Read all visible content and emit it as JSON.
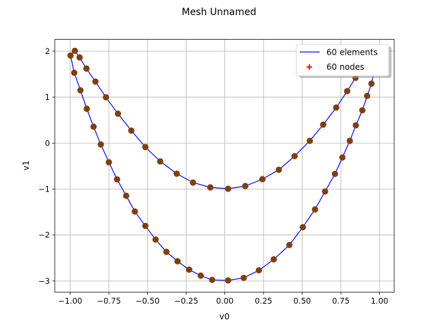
{
  "chart_data": {
    "type": "line",
    "title": "Mesh Unnamed",
    "xlabel": "v0",
    "ylabel": "v1",
    "xlim": [
      -1.1,
      1.095
    ],
    "ylim": [
      -3.243,
      2.257
    ],
    "grid": true,
    "legend_placement": "top-right",
    "xticks": [
      -1.0,
      -0.75,
      -0.5,
      -0.25,
      0.0,
      0.25,
      0.5,
      0.75,
      1.0
    ],
    "xtick_labels": [
      "−1.00",
      "−0.75",
      "−0.50",
      "−0.25",
      "0.00",
      "0.25",
      "0.50",
      "0.75",
      "1.00"
    ],
    "yticks": [
      2,
      1,
      0,
      -1,
      -2,
      -3
    ],
    "ytick_labels": [
      "2",
      "1",
      "0",
      "−1",
      "−2",
      "−3"
    ],
    "legend": [
      {
        "label": "60 elements",
        "kind": "line",
        "color": "#0000ff"
      },
      {
        "label": "60 nodes",
        "kind": "plus-marker",
        "color": "#ff0000"
      }
    ],
    "colors": {
      "line": "#0000ff",
      "marker": "#7f3f0c"
    },
    "closed": true,
    "points": [
      [
        -0.97,
        2.01
      ],
      [
        -0.939,
        1.865
      ],
      [
        -0.895,
        1.622
      ],
      [
        -0.837,
        1.339
      ],
      [
        -0.769,
        0.997
      ],
      [
        -0.691,
        0.64
      ],
      [
        -0.605,
        0.272
      ],
      [
        -0.514,
        -0.085
      ],
      [
        -0.418,
        -0.397
      ],
      [
        -0.311,
        -0.665
      ],
      [
        -0.206,
        -0.859
      ],
      [
        -0.094,
        -0.963
      ],
      [
        0.021,
        -0.993
      ],
      [
        0.132,
        -0.933
      ],
      [
        0.243,
        -0.784
      ],
      [
        0.349,
        -0.58
      ],
      [
        0.451,
        -0.283
      ],
      [
        0.549,
        0.049
      ],
      [
        0.636,
        0.402
      ],
      [
        0.72,
        0.774
      ],
      [
        0.791,
        1.131
      ],
      [
        0.845,
        1.42
      ],
      [
        0.89,
        1.68
      ],
      [
        0.93,
        1.9
      ],
      [
        0.965,
        2.03
      ],
      [
        0.995,
        1.93
      ],
      [
        0.98,
        1.75
      ],
      [
        0.965,
        1.55
      ],
      [
        0.948,
        1.294
      ],
      [
        0.92,
        1.027
      ],
      [
        0.889,
        0.714
      ],
      [
        0.847,
        0.387
      ],
      [
        0.808,
        0.049
      ],
      [
        0.76,
        -0.313
      ],
      [
        0.712,
        -0.67
      ],
      [
        0.648,
        -1.052
      ],
      [
        0.583,
        -1.443
      ],
      [
        0.504,
        -1.83
      ],
      [
        0.417,
        -2.217
      ],
      [
        0.316,
        -2.53
      ],
      [
        0.22,
        -2.768
      ],
      [
        0.122,
        -2.932
      ],
      [
        0.021,
        -2.987
      ],
      [
        -0.082,
        -2.976
      ],
      [
        -0.156,
        -2.883
      ],
      [
        -0.231,
        -2.753
      ],
      [
        -0.306,
        -2.57
      ],
      [
        -0.378,
        -2.366
      ],
      [
        -0.448,
        -2.098
      ],
      [
        -0.514,
        -1.801
      ],
      [
        -0.582,
        -1.488
      ],
      [
        -0.638,
        -1.146
      ],
      [
        -0.697,
        -0.789
      ],
      [
        -0.75,
        -0.417
      ],
      [
        -0.802,
        -0.03
      ],
      [
        -0.849,
        0.357
      ],
      [
        -0.893,
        0.748
      ],
      [
        -0.934,
        1.15
      ],
      [
        -0.974,
        1.532
      ],
      [
        -0.998,
        1.905
      ]
    ]
  }
}
